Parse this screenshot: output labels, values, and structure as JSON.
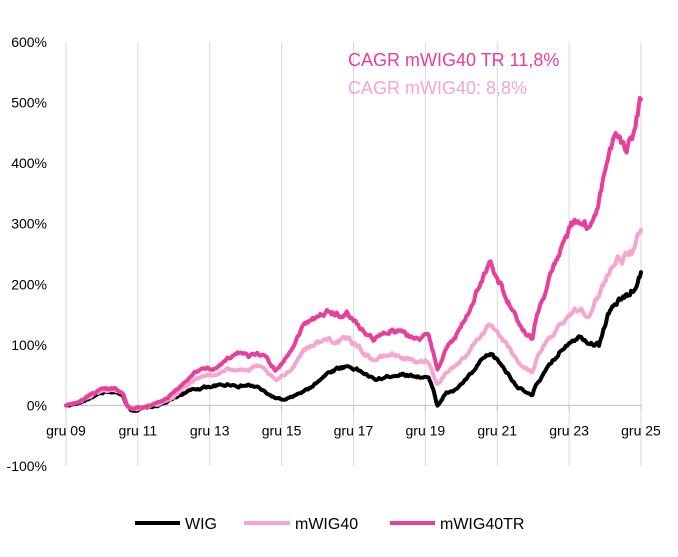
{
  "chart_data": {
    "type": "line",
    "title": "",
    "xlabel": "",
    "ylabel": "",
    "ylim": [
      -100,
      600
    ],
    "y_ticks": [
      -100,
      0,
      100,
      200,
      300,
      400,
      500,
      600
    ],
    "y_tick_labels": [
      "-100%",
      "0%",
      "100%",
      "200%",
      "300%",
      "400%",
      "500%",
      "600%"
    ],
    "x_range": [
      2009.92,
      2025.92
    ],
    "x_ticks": [
      2009.92,
      2011.92,
      2013.92,
      2015.92,
      2017.92,
      2019.92,
      2021.92,
      2023.92,
      2025.92
    ],
    "x_tick_labels": [
      "gru 09",
      "gru 11",
      "gru 13",
      "gru 15",
      "gru 17",
      "gru 19",
      "gru 21",
      "gru 23",
      "gru 25"
    ],
    "grid": "vertical",
    "legend_position": "bottom",
    "annotations": [
      {
        "text": "CAGR mWIG40 TR 11,8%",
        "color": "#e83e9c"
      },
      {
        "text": "CAGR mWIG40: 8,8%",
        "color": "#f4a6d0"
      }
    ],
    "series": [
      {
        "name": "WIG",
        "color": "#000000",
        "points": [
          [
            2009.92,
            0
          ],
          [
            2010.25,
            3
          ],
          [
            2010.5,
            10
          ],
          [
            2010.75,
            16
          ],
          [
            2011.0,
            21
          ],
          [
            2011.25,
            22
          ],
          [
            2011.5,
            18
          ],
          [
            2011.62,
            0
          ],
          [
            2011.75,
            -8
          ],
          [
            2012.0,
            -6
          ],
          [
            2012.25,
            -3
          ],
          [
            2012.5,
            0
          ],
          [
            2012.75,
            6
          ],
          [
            2013.0,
            14
          ],
          [
            2013.25,
            22
          ],
          [
            2013.5,
            26
          ],
          [
            2013.75,
            30
          ],
          [
            2014.0,
            32
          ],
          [
            2014.25,
            33
          ],
          [
            2014.5,
            35
          ],
          [
            2014.75,
            32
          ],
          [
            2015.0,
            33
          ],
          [
            2015.25,
            30
          ],
          [
            2015.5,
            20
          ],
          [
            2015.75,
            12
          ],
          [
            2016.0,
            8
          ],
          [
            2016.25,
            15
          ],
          [
            2016.5,
            22
          ],
          [
            2016.75,
            30
          ],
          [
            2017.0,
            45
          ],
          [
            2017.25,
            55
          ],
          [
            2017.5,
            62
          ],
          [
            2017.75,
            65
          ],
          [
            2018.0,
            60
          ],
          [
            2018.25,
            52
          ],
          [
            2018.5,
            42
          ],
          [
            2018.75,
            45
          ],
          [
            2019.0,
            50
          ],
          [
            2019.25,
            52
          ],
          [
            2019.5,
            50
          ],
          [
            2019.75,
            48
          ],
          [
            2020.0,
            45
          ],
          [
            2020.15,
            25
          ],
          [
            2020.25,
            0
          ],
          [
            2020.5,
            20
          ],
          [
            2020.75,
            25
          ],
          [
            2021.0,
            40
          ],
          [
            2021.25,
            55
          ],
          [
            2021.5,
            75
          ],
          [
            2021.75,
            85
          ],
          [
            2022.0,
            70
          ],
          [
            2022.25,
            50
          ],
          [
            2022.5,
            30
          ],
          [
            2022.75,
            20
          ],
          [
            2022.9,
            15
          ],
          [
            2023.0,
            35
          ],
          [
            2023.25,
            55
          ],
          [
            2023.5,
            75
          ],
          [
            2023.75,
            95
          ],
          [
            2024.0,
            110
          ],
          [
            2024.25,
            115
          ],
          [
            2024.5,
            105
          ],
          [
            2024.75,
            100
          ],
          [
            2025.0,
            150
          ],
          [
            2025.25,
            170
          ],
          [
            2025.5,
            180
          ],
          [
            2025.75,
            195
          ],
          [
            2025.92,
            220
          ]
        ]
      },
      {
        "name": "mWIG40",
        "color": "#f4a6d0",
        "points": [
          [
            2009.92,
            0
          ],
          [
            2010.25,
            5
          ],
          [
            2010.5,
            12
          ],
          [
            2010.75,
            20
          ],
          [
            2011.0,
            25
          ],
          [
            2011.25,
            26
          ],
          [
            2011.5,
            20
          ],
          [
            2011.62,
            0
          ],
          [
            2011.75,
            -6
          ],
          [
            2012.0,
            -4
          ],
          [
            2012.25,
            0
          ],
          [
            2012.5,
            3
          ],
          [
            2012.75,
            8
          ],
          [
            2013.0,
            20
          ],
          [
            2013.25,
            32
          ],
          [
            2013.5,
            42
          ],
          [
            2013.75,
            50
          ],
          [
            2014.0,
            48
          ],
          [
            2014.25,
            55
          ],
          [
            2014.5,
            60
          ],
          [
            2014.75,
            62
          ],
          [
            2015.0,
            58
          ],
          [
            2015.25,
            65
          ],
          [
            2015.5,
            55
          ],
          [
            2015.75,
            40
          ],
          [
            2016.0,
            50
          ],
          [
            2016.25,
            65
          ],
          [
            2016.5,
            90
          ],
          [
            2016.75,
            100
          ],
          [
            2017.0,
            105
          ],
          [
            2017.25,
            110
          ],
          [
            2017.5,
            105
          ],
          [
            2017.75,
            110
          ],
          [
            2018.0,
            100
          ],
          [
            2018.25,
            85
          ],
          [
            2018.5,
            75
          ],
          [
            2018.75,
            80
          ],
          [
            2019.0,
            85
          ],
          [
            2019.25,
            80
          ],
          [
            2019.5,
            75
          ],
          [
            2019.75,
            70
          ],
          [
            2020.0,
            75
          ],
          [
            2020.15,
            50
          ],
          [
            2020.25,
            35
          ],
          [
            2020.5,
            55
          ],
          [
            2020.75,
            65
          ],
          [
            2021.0,
            80
          ],
          [
            2021.25,
            100
          ],
          [
            2021.5,
            120
          ],
          [
            2021.75,
            130
          ],
          [
            2022.0,
            110
          ],
          [
            2022.25,
            95
          ],
          [
            2022.5,
            70
          ],
          [
            2022.75,
            60
          ],
          [
            2022.9,
            55
          ],
          [
            2023.0,
            75
          ],
          [
            2023.25,
            100
          ],
          [
            2023.5,
            120
          ],
          [
            2023.75,
            140
          ],
          [
            2024.0,
            155
          ],
          [
            2024.25,
            160
          ],
          [
            2024.5,
            150
          ],
          [
            2024.75,
            180
          ],
          [
            2025.0,
            220
          ],
          [
            2025.25,
            240
          ],
          [
            2025.5,
            245
          ],
          [
            2025.75,
            255
          ],
          [
            2025.92,
            290
          ]
        ]
      },
      {
        "name": "mWIG40TR",
        "color": "#e83e9c",
        "points": [
          [
            2009.92,
            0
          ],
          [
            2010.25,
            5
          ],
          [
            2010.5,
            13
          ],
          [
            2010.75,
            21
          ],
          [
            2011.0,
            27
          ],
          [
            2011.25,
            28
          ],
          [
            2011.5,
            22
          ],
          [
            2011.62,
            0
          ],
          [
            2011.75,
            -6
          ],
          [
            2012.0,
            -3
          ],
          [
            2012.25,
            1
          ],
          [
            2012.5,
            5
          ],
          [
            2012.75,
            12
          ],
          [
            2013.0,
            25
          ],
          [
            2013.25,
            40
          ],
          [
            2013.5,
            55
          ],
          [
            2013.75,
            62
          ],
          [
            2014.0,
            60
          ],
          [
            2014.25,
            70
          ],
          [
            2014.5,
            80
          ],
          [
            2014.75,
            85
          ],
          [
            2015.0,
            80
          ],
          [
            2015.25,
            88
          ],
          [
            2015.5,
            78
          ],
          [
            2015.75,
            60
          ],
          [
            2016.0,
            75
          ],
          [
            2016.25,
            100
          ],
          [
            2016.5,
            130
          ],
          [
            2016.75,
            145
          ],
          [
            2017.0,
            150
          ],
          [
            2017.25,
            155
          ],
          [
            2017.5,
            150
          ],
          [
            2017.75,
            152
          ],
          [
            2018.0,
            135
          ],
          [
            2018.25,
            120
          ],
          [
            2018.5,
            110
          ],
          [
            2018.75,
            118
          ],
          [
            2019.0,
            125
          ],
          [
            2019.25,
            120
          ],
          [
            2019.5,
            115
          ],
          [
            2019.75,
            110
          ],
          [
            2020.0,
            115
          ],
          [
            2020.15,
            85
          ],
          [
            2020.25,
            60
          ],
          [
            2020.5,
            95
          ],
          [
            2020.75,
            110
          ],
          [
            2021.0,
            140
          ],
          [
            2021.25,
            170
          ],
          [
            2021.5,
            210
          ],
          [
            2021.75,
            235
          ],
          [
            2022.0,
            200
          ],
          [
            2022.25,
            170
          ],
          [
            2022.5,
            135
          ],
          [
            2022.75,
            120
          ],
          [
            2022.9,
            110
          ],
          [
            2023.0,
            145
          ],
          [
            2023.25,
            185
          ],
          [
            2023.5,
            230
          ],
          [
            2023.75,
            270
          ],
          [
            2024.0,
            295
          ],
          [
            2024.25,
            305
          ],
          [
            2024.5,
            285
          ],
          [
            2024.75,
            340
          ],
          [
            2025.0,
            410
          ],
          [
            2025.25,
            440
          ],
          [
            2025.5,
            430
          ],
          [
            2025.75,
            460
          ],
          [
            2025.92,
            505
          ]
        ]
      }
    ]
  }
}
